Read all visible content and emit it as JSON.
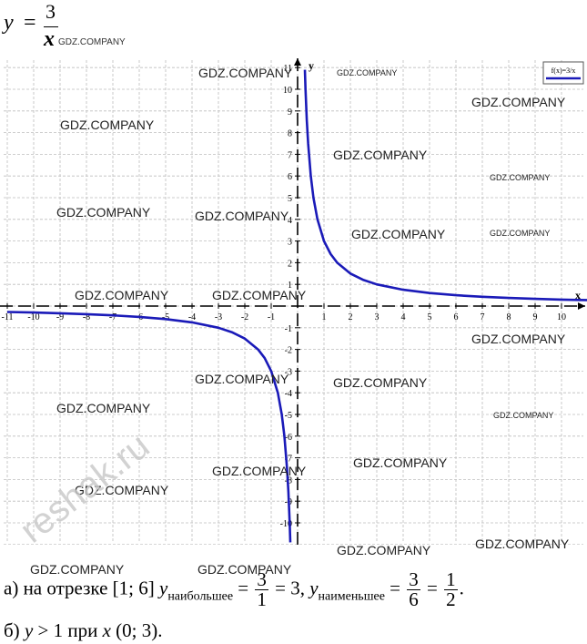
{
  "formula": {
    "lhs": "y",
    "eq": "=",
    "numerator": "3",
    "denominator": "x",
    "watermark": "GDZ.COMPANY"
  },
  "chart_data": {
    "type": "line",
    "function": "f(x)=3/x",
    "legend": "f(x)=3/x",
    "legend_position": "top-right",
    "xlabel": "x",
    "ylabel": "y",
    "xlim": [
      -11,
      11
    ],
    "ylim": [
      -11,
      11
    ],
    "x_ticks": [
      "-11",
      "-10",
      "-9",
      "-8",
      "-7",
      "-6",
      "-5",
      "-4",
      "-3",
      "-2",
      "-1",
      "1",
      "2",
      "3",
      "4",
      "5",
      "6",
      "7",
      "8",
      "9",
      "10"
    ],
    "y_ticks": [
      "11",
      "10",
      "9",
      "8",
      "7",
      "6",
      "5",
      "4",
      "3",
      "2",
      "1",
      "-1",
      "-2",
      "-3",
      "-4",
      "-5",
      "-6",
      "-7",
      "-8",
      "-9",
      "-10"
    ],
    "grid": true,
    "series": [
      {
        "name": "f(x)=3/x",
        "color": "#1a1ab8",
        "x": [
          0.275,
          0.3,
          0.35,
          0.4,
          0.5,
          0.6,
          0.75,
          1,
          1.25,
          1.5,
          2,
          2.5,
          3,
          4,
          5,
          6,
          7,
          8,
          9,
          10,
          11
        ],
        "y": [
          10.9,
          10,
          8.57,
          7.5,
          6,
          5,
          4,
          3,
          2.4,
          2,
          1.5,
          1.2,
          1,
          0.75,
          0.6,
          0.5,
          0.429,
          0.375,
          0.333,
          0.3,
          0.273
        ]
      },
      {
        "name": "f(x)=3/x",
        "color": "#1a1ab8",
        "x": [
          -11,
          -10,
          -9,
          -8,
          -7,
          -6,
          -5,
          -4,
          -3,
          -2.5,
          -2,
          -1.5,
          -1.25,
          -1,
          -0.75,
          -0.6,
          -0.5,
          -0.4,
          -0.35,
          -0.3,
          -0.275
        ],
        "y": [
          -0.273,
          -0.3,
          -0.333,
          -0.375,
          -0.429,
          -0.5,
          -0.6,
          -0.75,
          -1,
          -1.2,
          -1.5,
          -2,
          -2.4,
          -3,
          -4,
          -5,
          -6,
          -7.5,
          -8.57,
          -10,
          -10.9
        ]
      }
    ]
  },
  "watermarks": [
    "GDZ.COMPANY",
    "GDZ.COMPANY",
    "GDZ.COMPANY",
    "GDZ.COMPANY",
    "GDZ.COMPANY",
    "GDZ.COMPANY",
    "GDZ.COMPANY",
    "GDZ.COMPANY",
    "GDZ.COMPANY",
    "GDZ.COMPANY",
    "GDZ.COMPANY",
    "GDZ.COMPANY",
    "GDZ.COMPANY",
    "GDZ.COMPANY",
    "GDZ.COMPANY",
    "GDZ.COMPANY",
    "GDZ.COMPANY",
    "GDZ.COMPANY",
    "GDZ.COMPANY",
    "GDZ.COMPANY",
    "GDZ.COMPANY",
    "GDZ.COMPANY",
    "GDZ.COMPANY"
  ],
  "site_watermark": "reshak.ru",
  "answer_a": {
    "prefix": "а) на отрезке",
    "interval": "[1; 6]",
    "y": "y",
    "max_sub": "наибольшее",
    "eq1": "=",
    "f1_num": "3",
    "f1_den": "1",
    "eq1b": "= 3,",
    "min_sub": "наименьшее",
    "eq2": "=",
    "f2_num": "3",
    "f2_den": "6",
    "eq2b": "=",
    "f3_num": "1",
    "f3_den": "2",
    "end": "."
  },
  "answer_b": {
    "prefix": "б)",
    "y": "y",
    "cond": "> 1 при",
    "x": "x",
    "interval": "(0; 3)."
  }
}
